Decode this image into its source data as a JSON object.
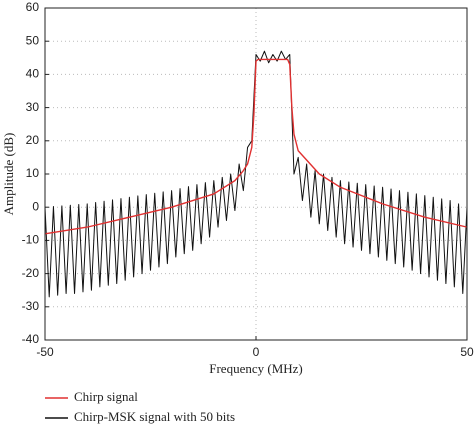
{
  "chart_data": {
    "type": "line",
    "xlabel": "Frequency (MHz)",
    "ylabel": "Amplitude (dB)",
    "xlim": [
      -50,
      50
    ],
    "xticks": [
      -50,
      0,
      50
    ],
    "ylim": [
      -40,
      60
    ],
    "yticks": [
      -40,
      -30,
      -20,
      -10,
      0,
      10,
      20,
      30,
      40,
      50,
      60
    ],
    "grid": true,
    "legend": "bottom",
    "series": [
      {
        "name": "Chirp signal",
        "color": "#e03030",
        "x": [
          -50,
          -40,
          -30,
          -20,
          -10,
          -5,
          -3,
          -2,
          -1,
          -0.5,
          0,
          0.5,
          4,
          7.5,
          8,
          8.5,
          9,
          10,
          15,
          20,
          30,
          40,
          50
        ],
        "values": [
          -8,
          -6,
          -3,
          0,
          4,
          8,
          11,
          13,
          18,
          28,
          44,
          44.5,
          44.5,
          44.5,
          43,
          30,
          22,
          17,
          10,
          6,
          1,
          -3,
          -6
        ]
      },
      {
        "name": "Chirp-MSK signal with 50 bits",
        "color": "#111111",
        "x": [
          -50,
          -49,
          -48,
          -47,
          -46,
          -45,
          -44,
          -43,
          -42,
          -41,
          -40,
          -39,
          -38,
          -37,
          -36,
          -35,
          -34,
          -33,
          -32,
          -31,
          -30,
          -29,
          -28,
          -27,
          -26,
          -25,
          -24,
          -23,
          -22,
          -21,
          -20,
          -19,
          -18,
          -17,
          -16,
          -15,
          -14,
          -13,
          -12,
          -11,
          -10,
          -9,
          -8,
          -7,
          -6,
          -5,
          -4,
          -3,
          -2,
          -1,
          0,
          1,
          2,
          3,
          4,
          5,
          6,
          7,
          8,
          9,
          10,
          11,
          12,
          13,
          14,
          15,
          16,
          17,
          18,
          19,
          20,
          21,
          22,
          23,
          24,
          25,
          26,
          27,
          28,
          29,
          30,
          31,
          32,
          33,
          34,
          35,
          36,
          37,
          38,
          39,
          40,
          41,
          42,
          43,
          44,
          45,
          46,
          47,
          48,
          49,
          50
        ],
        "values": [
          0,
          -27,
          0.2,
          -26.5,
          0.4,
          -26,
          0.6,
          -26,
          0.8,
          -25.5,
          1,
          -25,
          1.4,
          -24,
          1.8,
          -23.5,
          2.2,
          -23,
          2.6,
          -22,
          3,
          -21,
          3.4,
          -20,
          3.8,
          -19,
          4.2,
          -18,
          4.6,
          -17,
          5,
          -15,
          5.6,
          -14,
          6.2,
          -13,
          6.8,
          -11,
          7.4,
          -9,
          8,
          -6,
          9,
          -4,
          10,
          -1,
          13,
          5,
          18,
          20,
          46,
          44,
          47,
          43.5,
          46,
          44,
          47,
          44.5,
          46,
          10,
          15,
          2,
          13,
          -3,
          11,
          -5,
          10,
          -7,
          9,
          -9,
          8,
          -11,
          7.6,
          -12,
          7.2,
          -13,
          6.8,
          -14,
          6.4,
          -15,
          6,
          -16,
          5.5,
          -17,
          5,
          -18,
          4.5,
          -19,
          4,
          -20,
          3.5,
          -21,
          3,
          -22,
          2.5,
          -23,
          2,
          -24,
          1,
          -26,
          0
        ]
      }
    ]
  }
}
